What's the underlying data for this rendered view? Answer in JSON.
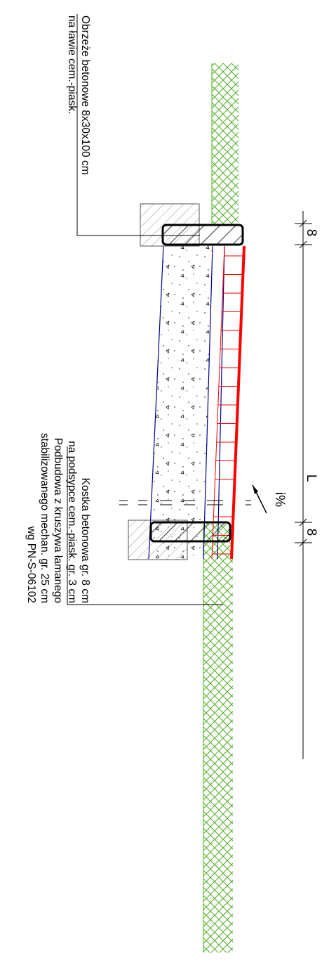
{
  "labels": {
    "curb_line1": "Obrzeże betonowe 8x30x100 cm",
    "curb_line2": "na ławie cem.-piask.",
    "paving_line1": "Kostka betonowa gr. 8 cm",
    "paving_line2": "na podsypce cem.-piask. gr. 3 cm",
    "base_line1": "Podbudowa z kruszywa łamanego",
    "base_line2": "stabilizowanego mechan. gr. 25 cm",
    "base_line3": "wg PN-S-06102"
  },
  "dimensions": {
    "left_edge": "8",
    "width": "L",
    "right_edge": "8",
    "slope": "i%"
  },
  "colors": {
    "paving": "#ff0000",
    "bedding_lines": "#00008b",
    "grass": "#4caf1f",
    "lines": "#000000",
    "hatch": "#555555"
  }
}
